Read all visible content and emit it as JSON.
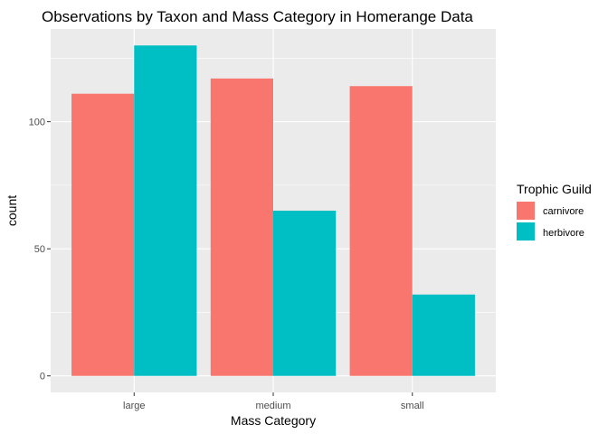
{
  "chart_data": {
    "type": "bar",
    "title": "Observations by Taxon and Mass Category in Homerange Data",
    "xlabel": "Mass Category",
    "ylabel": "count",
    "categories": [
      "large",
      "medium",
      "small"
    ],
    "series": [
      {
        "name": "carnivore",
        "values": [
          111,
          117,
          114
        ],
        "color": "#F8766D"
      },
      {
        "name": "herbivore",
        "values": [
          130,
          65,
          32
        ],
        "color": "#00BFC4"
      }
    ],
    "y_ticks": [
      0,
      50,
      100
    ],
    "y_tick_labels": [
      "0",
      "50",
      "100"
    ],
    "ylim": [
      -6.5,
      136.5
    ],
    "legend": {
      "title": "Trophic Guild",
      "placement": "right"
    },
    "grid": true,
    "panel_background": "#EBEBEB",
    "grid_color": "#FFFFFF"
  }
}
